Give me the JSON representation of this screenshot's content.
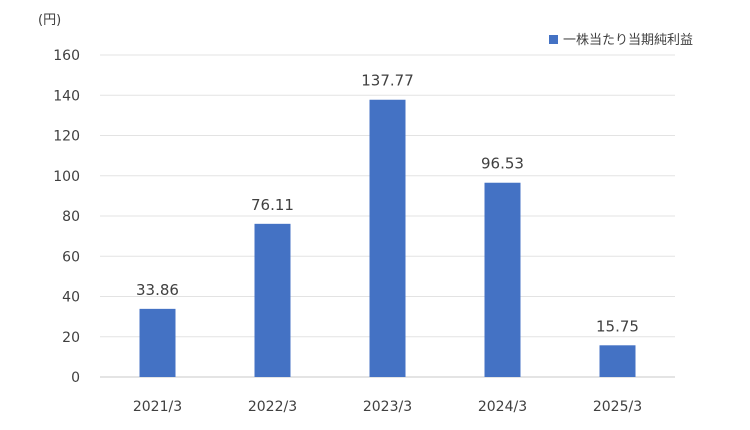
{
  "chart_data": {
    "type": "bar",
    "unit_label": "(円)",
    "categories": [
      "2021/3",
      "2022/3",
      "2023/3",
      "2024/3",
      "2025/3"
    ],
    "series": [
      {
        "name": "一株当たり当期純利益",
        "values": [
          33.86,
          76.11,
          137.77,
          96.53,
          15.75
        ],
        "value_labels": [
          "33.86",
          "76.11",
          "137.77",
          "96.53",
          "15.75"
        ],
        "color": "#4472c4"
      }
    ],
    "ylim": [
      0,
      160
    ],
    "yticks": [
      0,
      20,
      40,
      60,
      80,
      100,
      120,
      140,
      160
    ],
    "grid": true,
    "legend_position": "top-right"
  }
}
